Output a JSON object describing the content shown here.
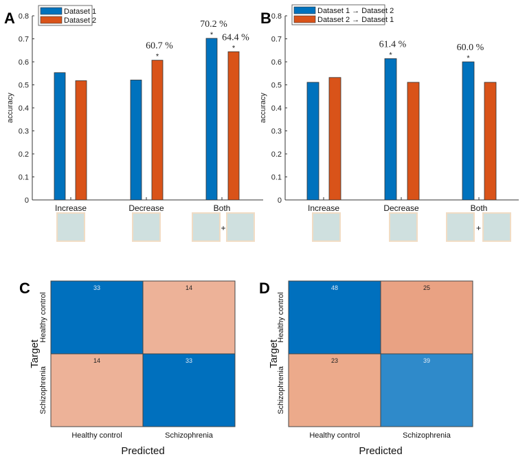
{
  "chart_data": [
    {
      "type": "bar",
      "panel": "A",
      "title": "",
      "xlabel": "",
      "ylabel": "accuracy",
      "ylim": [
        0,
        0.8
      ],
      "yticks": [
        "0",
        "0.1",
        "0.2",
        "0.3",
        "0.4",
        "0.5",
        "0.6",
        "0.7",
        "0.8"
      ],
      "categories": [
        "Increase",
        "Decrease",
        "Both"
      ],
      "series": [
        {
          "name": "Dataset 1",
          "color": "#0072BD",
          "values": [
            0.553,
            0.521,
            0.702
          ]
        },
        {
          "name": "Dataset 2",
          "color": "#D95319",
          "values": [
            0.518,
            0.607,
            0.644
          ]
        }
      ],
      "annotations": [
        {
          "series": 1,
          "category": 1,
          "star": "*",
          "label": "60.7 %"
        },
        {
          "series": 0,
          "category": 2,
          "star": "*",
          "label": "70.2 %"
        },
        {
          "series": 1,
          "category": 2,
          "star": "*",
          "label": "64.4 %"
        }
      ],
      "legend": "top-left",
      "thumbnail_plus": "+"
    },
    {
      "type": "bar",
      "panel": "B",
      "title": "",
      "xlabel": "",
      "ylabel": "accuracy",
      "ylim": [
        0,
        0.8
      ],
      "yticks": [
        "0",
        "0.1",
        "0.2",
        "0.3",
        "0.4",
        "0.5",
        "0.6",
        "0.7",
        "0.8"
      ],
      "categories": [
        "Increase",
        "Decrease",
        "Both"
      ],
      "series": [
        {
          "name": "Dataset 1 → Dataset 2",
          "color": "#0072BD",
          "values": [
            0.511,
            0.614,
            0.6
          ]
        },
        {
          "name": "Dataset 2 → Dataset 1",
          "color": "#D95319",
          "values": [
            0.532,
            0.511,
            0.511
          ]
        }
      ],
      "annotations": [
        {
          "series": 0,
          "category": 1,
          "star": "*",
          "label": "61.4 %"
        },
        {
          "series": 0,
          "category": 2,
          "star": "*",
          "label": "60.0 %"
        }
      ],
      "legend": "top-left",
      "thumbnail_plus": "+"
    },
    {
      "type": "heatmap",
      "panel": "C",
      "xlabel": "Predicted",
      "ylabel": "Target",
      "classes": [
        "Healthy control",
        "Schizophrenia"
      ],
      "values": [
        [
          33,
          14
        ],
        [
          14,
          33
        ]
      ],
      "colors": [
        [
          "#0070BE",
          "#EDB298"
        ],
        [
          "#EDB298",
          "#0070BE"
        ]
      ]
    },
    {
      "type": "heatmap",
      "panel": "D",
      "xlabel": "Predicted",
      "ylabel": "Target",
      "classes": [
        "Healthy control",
        "Schizophrenia"
      ],
      "values": [
        [
          48,
          25
        ],
        [
          23,
          39
        ]
      ],
      "colors": [
        [
          "#0070BE",
          "#E9A283"
        ],
        [
          "#ECAA8B",
          "#2F8ACA"
        ]
      ]
    }
  ]
}
